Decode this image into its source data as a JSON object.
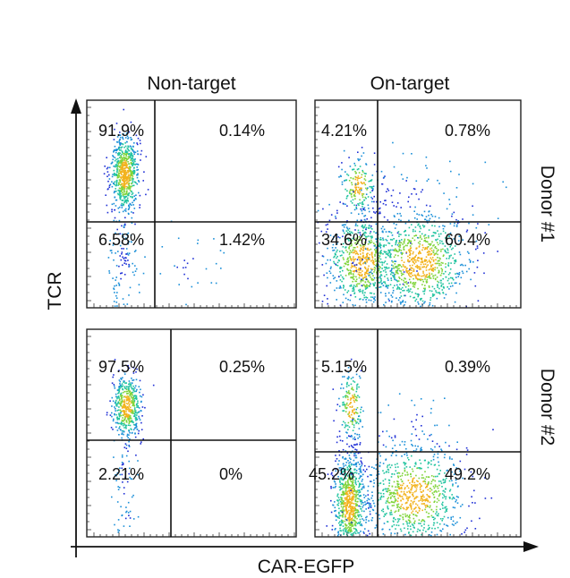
{
  "chart_data": {
    "type": "scatter",
    "xlabel": "CAR-EGFP",
    "ylabel": "TCR",
    "columns": [
      "Non-target",
      "On-target"
    ],
    "rows": [
      "Donor #1",
      "Donor #2"
    ],
    "panels": [
      {
        "column": "Non-target",
        "row": "Donor #1",
        "quadrants": {
          "upper_left": "91.9%",
          "upper_right": "0.14%",
          "lower_left": "6.58%",
          "lower_right": "1.42%"
        }
      },
      {
        "column": "On-target",
        "row": "Donor #1",
        "quadrants": {
          "upper_left": "4.21%",
          "upper_right": "0.78%",
          "lower_left": "34.6%",
          "lower_right": "60.4%"
        }
      },
      {
        "column": "Non-target",
        "row": "Donor #2",
        "quadrants": {
          "upper_left": "97.5%",
          "upper_right": "0.25%",
          "lower_left": "2.21%",
          "lower_right": "0%"
        }
      },
      {
        "column": "On-target",
        "row": "Donor #2",
        "quadrants": {
          "upper_left": "5.15%",
          "upper_right": "0.39%",
          "lower_left": "45.2%",
          "lower_right": "49.2%"
        }
      }
    ],
    "colors": {
      "sparse": "#1f2fd6",
      "low": "#1a8fd8",
      "mid": "#22c4a0",
      "high": "#7fd43a",
      "peak": "#f2b21c"
    }
  }
}
